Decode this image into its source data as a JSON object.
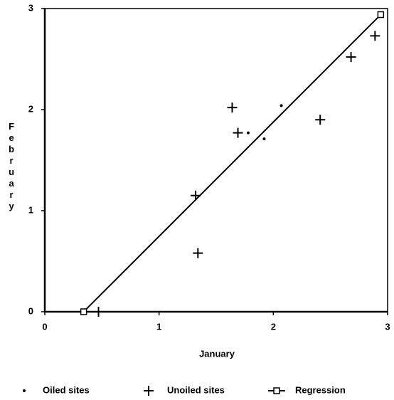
{
  "chart_data": {
    "type": "scatter",
    "xlabel": "January",
    "ylabel": "February",
    "xlim": [
      0,
      3
    ],
    "ylim": [
      0,
      3
    ],
    "xticks": [
      0,
      1,
      2,
      3
    ],
    "yticks": [
      0,
      1,
      2,
      3
    ],
    "series": [
      {
        "name": "Oiled sites",
        "marker": "dot",
        "color": "#000000",
        "x": [
          1.78,
          1.92,
          2.07
        ],
        "y": [
          1.77,
          1.71,
          2.04
        ]
      },
      {
        "name": "Unoiled sites",
        "marker": "plus",
        "color": "#000000",
        "x": [
          0.47,
          1.32,
          1.34,
          1.64,
          1.69,
          2.41,
          2.68,
          2.89
        ],
        "y": [
          0,
          1.15,
          0.58,
          2.02,
          1.77,
          1.9,
          2.52,
          2.73
        ]
      },
      {
        "name": "Regression",
        "marker": "square",
        "line": true,
        "color": "#000000",
        "x": [
          0.34,
          2.94
        ],
        "y": [
          0,
          2.94
        ]
      }
    ]
  }
}
